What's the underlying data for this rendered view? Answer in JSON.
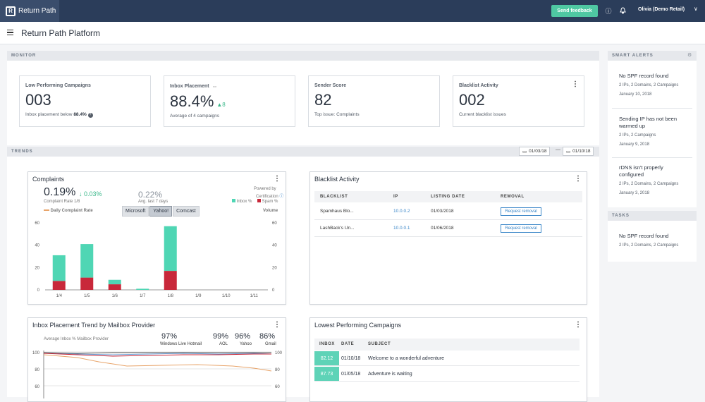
{
  "topbar": {
    "logo_text": "Return Path",
    "feedback_label": "Send feedback",
    "info_icon": "ⓘ",
    "bell_icon": "🔔",
    "user": "Olivia (Demo Retail)",
    "chevron": "∨"
  },
  "header": {
    "title": "Return Path Platform"
  },
  "monitor": {
    "label": "MONITOR",
    "kpis": [
      {
        "title": "Low Performing Campaigns",
        "value": "003",
        "sub": "Inbox placement below",
        "sub_bold": "88.4%"
      },
      {
        "title": "Inbox Placement",
        "value": "88.4%",
        "delta": "▲8",
        "sub": "Average of 4 campaigns"
      },
      {
        "title": "Sender Score",
        "value": "82",
        "sub": "Top issue: Complaints"
      },
      {
        "title": "Blacklist Activity",
        "value": "002",
        "sub": "Current blacklist issues"
      }
    ]
  },
  "trends": {
    "label": "TRENDS",
    "date_from": "01/03/18",
    "date_sep": "—",
    "date_to": "01/10/18"
  },
  "complaints": {
    "title": "Complaints",
    "rate": "0.19%",
    "delta": "↓ 0.03%",
    "rate_sub": "Complaint Rate 1/8",
    "avg": "0.22%",
    "avg_sub": "Avg. last 7 days",
    "powered": "Powered by",
    "cert": "Certification",
    "inbox_leg": "Inbox %",
    "spam_leg": "Spam %",
    "daily_leg": "Daily Complaint Rate",
    "volume": "Volume",
    "tabs": [
      "Microsoft",
      "Yahoo!",
      "Comcast"
    ],
    "active_tab": "Yahoo!"
  },
  "chart_data": {
    "type": "bar",
    "categories": [
      "1/4",
      "1/5",
      "1/6",
      "1/7",
      "1/8",
      "1/9",
      "1/10",
      "1/11"
    ],
    "series": [
      {
        "name": "Inbox %",
        "values": [
          23,
          30,
          4,
          1,
          40,
          0,
          0,
          0
        ]
      },
      {
        "name": "Spam %",
        "values": [
          8,
          11,
          5,
          0,
          17,
          0,
          0,
          0
        ]
      }
    ],
    "yticks": [
      "60",
      "40",
      "20",
      "0"
    ],
    "y2ticks": [
      "60",
      "40",
      "20",
      "0"
    ],
    "ylim": [
      0,
      60
    ]
  },
  "blacklist": {
    "title": "Blacklist Activity",
    "headers": [
      "BLACKLIST",
      "IP",
      "LISTING DATE",
      "REMOVAL"
    ],
    "rows": [
      {
        "name": "Spamhaus Blo...",
        "ip": "10.0.0.2",
        "date": "01/03/2018",
        "action": "Request removal"
      },
      {
        "name": "LashBack's Un...",
        "ip": "10.0.0.1",
        "date": "01/06/2018",
        "action": "Request removal"
      }
    ]
  },
  "inbox_trend": {
    "title": "Inbox Placement Trend by Mailbox Provider",
    "sub": "Average Inbox % Mailbox Provider",
    "providers": [
      {
        "pct": "97%",
        "name": "Windows Live Hotmail"
      },
      {
        "pct": "99%",
        "name": "AOL"
      },
      {
        "pct": "96%",
        "name": "Yahoo"
      },
      {
        "pct": "86%",
        "name": "Gmail"
      }
    ],
    "yticks": [
      "100",
      "80",
      "60"
    ],
    "y2ticks": [
      "100",
      "80",
      "60"
    ]
  },
  "lowest": {
    "title": "Lowest Performing Campaigns",
    "headers": [
      "INBOX",
      "DATE",
      "SUBJECT"
    ],
    "rows": [
      {
        "inbox": "82.12",
        "date": "01/10/18",
        "subject": "Welcome to a wonderful adventure"
      },
      {
        "inbox": "87.73",
        "date": "01/05/18",
        "subject": "Adventure is waiting"
      }
    ]
  },
  "smart_alerts": {
    "label": "SMART ALERTS",
    "items": [
      {
        "title": "No SPF record found",
        "sub": "2 IPs, 2 Domains, 2 Campaigns",
        "date": "January 10, 2018"
      },
      {
        "title": "Sending IP has not been warmed up",
        "sub": "2 IPs, 2 Campaigns",
        "date": "January 9, 2018"
      },
      {
        "title": "rDNS isn't properly configured",
        "sub": "2 IPs, 2 Domains, 2 Campaigns",
        "date": "January 3, 2018"
      }
    ]
  },
  "tasks": {
    "label": "TASKS",
    "items": [
      {
        "title": "No SPF record found",
        "sub": "2 IPs, 2 Domains, 2 Campaigns"
      }
    ]
  },
  "colors": {
    "teal": "#4fd6b4",
    "red": "#c8283a",
    "navy": "#2b3d5a",
    "accent": "#4fc7a2"
  }
}
